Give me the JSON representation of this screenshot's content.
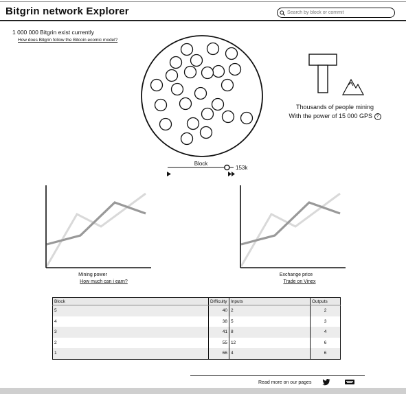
{
  "header": {
    "title": "Bitgrin network Explorer",
    "search_placeholder": "Search by block or commit"
  },
  "supply": {
    "text": "1 000 000 Bitgrin exist currently",
    "link": "How does Bitgrin follow the Bitcoin ecomic model?"
  },
  "miners": {
    "line1": "Thousands of people mining",
    "line2": "With the power of 15 000 GPS",
    "help_symbol": "?"
  },
  "block_slider": {
    "label": "Block",
    "value": "153k",
    "progress": 0.9
  },
  "charts": {
    "mining": {
      "label": "Mining power",
      "link": "How much can i earn?"
    },
    "exchange": {
      "label": "Exchange price",
      "link": "Trade on Vinex"
    }
  },
  "table": {
    "headers": [
      "Block",
      "Difficulty",
      "Inputs",
      "Outputs"
    ],
    "rows": [
      [
        "5",
        "40",
        "2",
        "2"
      ],
      [
        "4",
        "38",
        "5",
        "3"
      ],
      [
        "3",
        "41",
        "8",
        "4"
      ],
      [
        "2",
        "55",
        "12",
        "6"
      ],
      [
        "1",
        "66",
        "4",
        "6"
      ]
    ]
  },
  "footer": {
    "text": "Read more on our pages",
    "icons": [
      "twitter-icon",
      "medium-icon"
    ]
  }
}
